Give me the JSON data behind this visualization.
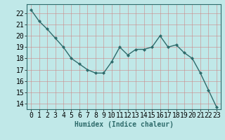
{
  "x": [
    0,
    1,
    2,
    3,
    4,
    5,
    6,
    7,
    8,
    9,
    10,
    11,
    12,
    13,
    14,
    15,
    16,
    17,
    18,
    19,
    20,
    21,
    22,
    23
  ],
  "y": [
    22.3,
    21.3,
    20.6,
    19.8,
    19.0,
    18.0,
    17.5,
    17.0,
    16.7,
    16.7,
    17.7,
    19.0,
    18.3,
    18.8,
    18.8,
    19.0,
    20.0,
    19.0,
    19.2,
    18.5,
    18.0,
    16.7,
    15.2,
    13.7
  ],
  "line_color": "#2e6b6b",
  "marker": "D",
  "marker_size": 2.0,
  "bg_color": "#c0e8e8",
  "grid_color": "#b0cccc",
  "xlabel": "Humidex (Indice chaleur)",
  "ylabel_ticks": [
    14,
    15,
    16,
    17,
    18,
    19,
    20,
    21,
    22
  ],
  "ylim": [
    13.5,
    22.8
  ],
  "xlim": [
    -0.5,
    23.5
  ],
  "xlabel_fontsize": 7,
  "tick_fontsize": 7,
  "line_width": 1.0
}
